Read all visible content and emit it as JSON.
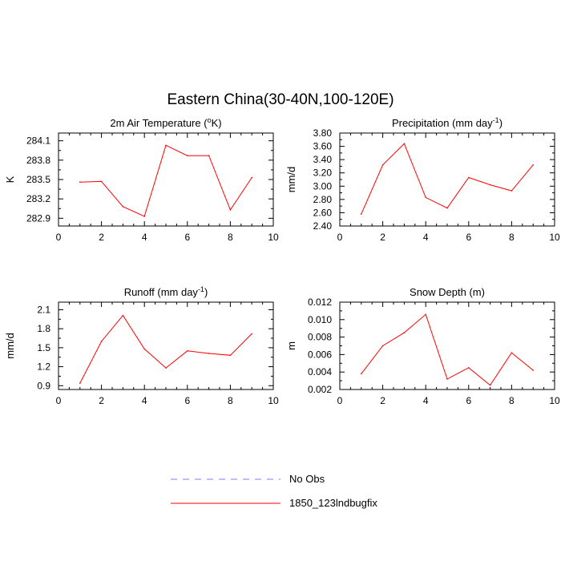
{
  "title": "Eastern China(30-40N,100-120E)",
  "colors": {
    "model": "#ff0000",
    "obs": "#7b7bff",
    "axis": "#000000"
  },
  "legend": {
    "placement": "bottom-center",
    "entries": [
      {
        "label": "No Obs",
        "style": "dashed",
        "color": "#7b7bff"
      },
      {
        "label": "1850_123lndbugfix",
        "style": "solid",
        "color": "#ff0000"
      }
    ]
  },
  "chart_data": [
    {
      "type": "line",
      "title_main": "2m Air Temperature (",
      "title_sup": "o",
      "title_end": "K)",
      "xlabel": "",
      "ylabel": "K",
      "xlim": [
        0,
        10
      ],
      "ylim": [
        282.78,
        284.22
      ],
      "xticks": [
        0,
        2,
        4,
        6,
        8,
        10
      ],
      "yticks": [
        282.9,
        283.2,
        283.5,
        283.8,
        284.1
      ],
      "ytick_labels": [
        "282.9",
        "283.2",
        "283.5",
        "283.8",
        "284.1"
      ],
      "series": [
        {
          "name": "1850_123lndbugfix",
          "x": [
            1,
            2,
            3,
            4,
            5,
            6,
            7,
            8,
            9
          ],
          "values": [
            283.46,
            283.47,
            283.08,
            282.93,
            284.03,
            283.87,
            283.87,
            283.03,
            283.53
          ]
        }
      ]
    },
    {
      "type": "line",
      "title_main": "Precipitation (mm day",
      "title_sup": "-1",
      "title_end": ")",
      "xlabel": "",
      "ylabel": "mm/d",
      "xlim": [
        0,
        10
      ],
      "ylim": [
        2.4,
        3.8
      ],
      "xticks": [
        0,
        2,
        4,
        6,
        8,
        10
      ],
      "yticks": [
        2.4,
        2.6,
        2.8,
        3.0,
        3.2,
        3.4,
        3.6,
        3.8
      ],
      "ytick_labels": [
        "2.40",
        "2.60",
        "2.80",
        "3.00",
        "3.20",
        "3.40",
        "3.60",
        "3.80"
      ],
      "series": [
        {
          "name": "1850_123lndbugfix",
          "x": [
            1,
            2,
            3,
            4,
            5,
            6,
            7,
            8,
            9
          ],
          "values": [
            2.58,
            3.32,
            3.64,
            2.83,
            2.67,
            3.13,
            3.02,
            2.93,
            3.32
          ]
        }
      ]
    },
    {
      "type": "line",
      "title_main": "Runoff (mm day",
      "title_sup": "-1",
      "title_end": ")",
      "xlabel": "",
      "ylabel": "mm/d",
      "xlim": [
        0,
        10
      ],
      "ylim": [
        0.84,
        2.22
      ],
      "xticks": [
        0,
        2,
        4,
        6,
        8,
        10
      ],
      "yticks": [
        0.9,
        1.2,
        1.5,
        1.8,
        2.1
      ],
      "ytick_labels": [
        "0.9",
        "1.2",
        "1.5",
        "1.8",
        "2.1"
      ],
      "series": [
        {
          "name": "1850_123lndbugfix",
          "x": [
            1,
            2,
            3,
            4,
            5,
            6,
            7,
            8,
            9
          ],
          "values": [
            0.94,
            1.6,
            2.01,
            1.48,
            1.18,
            1.45,
            1.41,
            1.38,
            1.72
          ]
        }
      ]
    },
    {
      "type": "line",
      "title_main": "Snow Depth (m)",
      "title_sup": "",
      "title_end": "",
      "xlabel": "",
      "ylabel": "m",
      "xlim": [
        0,
        10
      ],
      "ylim": [
        0.002,
        0.012
      ],
      "xticks": [
        0,
        2,
        4,
        6,
        8,
        10
      ],
      "yticks": [
        0.002,
        0.004,
        0.006,
        0.008,
        0.01,
        0.012
      ],
      "ytick_labels": [
        "0.002",
        "0.004",
        "0.006",
        "0.008",
        "0.010",
        "0.012"
      ],
      "series": [
        {
          "name": "1850_123lndbugfix",
          "x": [
            1,
            2,
            3,
            4,
            5,
            6,
            7,
            8,
            9
          ],
          "values": [
            0.0038,
            0.007,
            0.0085,
            0.0106,
            0.0032,
            0.0045,
            0.0025,
            0.0062,
            0.0042
          ]
        }
      ]
    }
  ]
}
